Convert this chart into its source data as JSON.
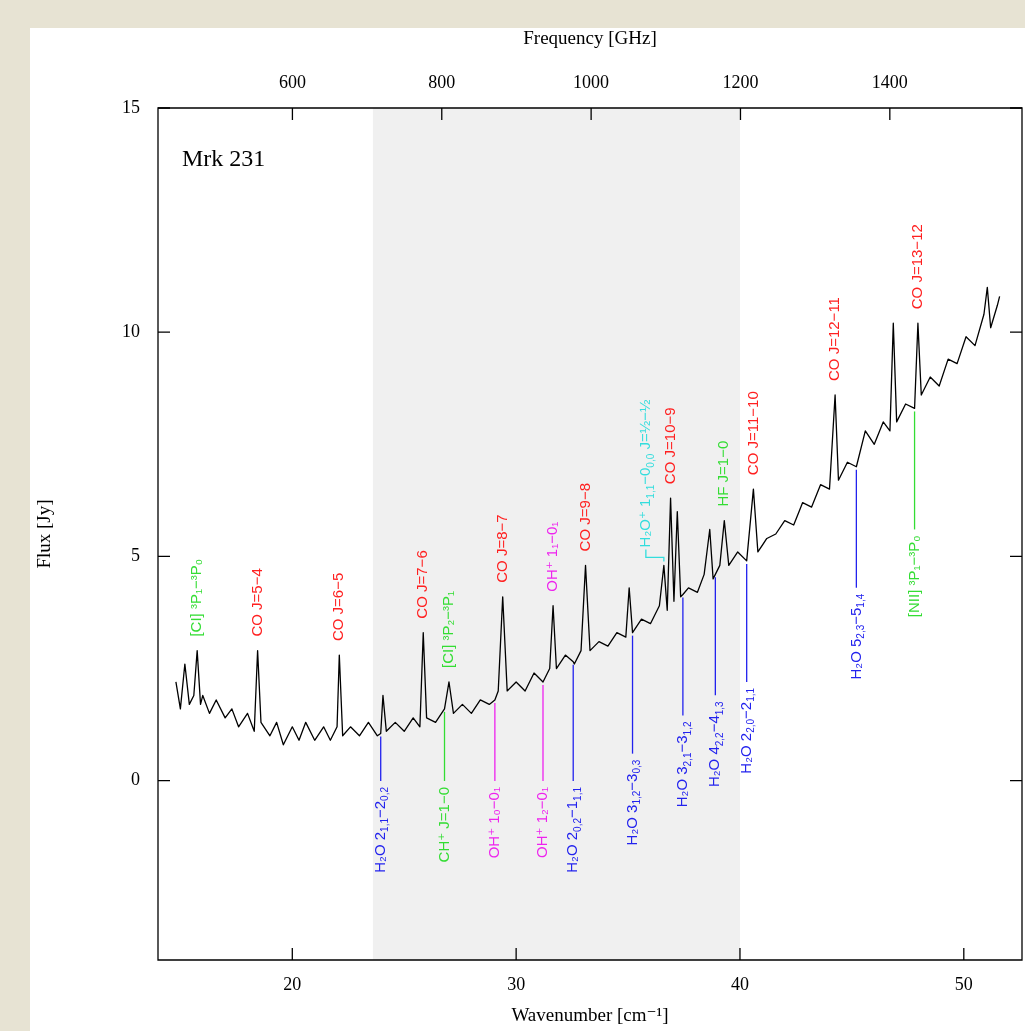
{
  "chart_data": {
    "type": "line",
    "xlabel": "Wavenumber [cm⁻¹]",
    "x2label": "Frequency [GHz]",
    "ylabel": "Flux [Jy]",
    "xlim": [
      14,
      52.6
    ],
    "xticks": [
      20,
      30,
      40,
      50
    ],
    "x2lim": [
      420,
      1577
    ],
    "x2ticks": [
      600,
      800,
      1000,
      1200,
      1400
    ],
    "ylim": [
      -4,
      15
    ],
    "yticks": [
      0,
      5,
      10,
      15
    ],
    "x": [
      14.8,
      15.0,
      15.2,
      15.4,
      15.6,
      15.75,
      15.9,
      16.0,
      16.3,
      16.6,
      17.0,
      17.3,
      17.6,
      18.0,
      18.3,
      18.45,
      18.6,
      19.0,
      19.3,
      19.6,
      20.0,
      20.3,
      20.6,
      21.0,
      21.4,
      21.7,
      22.0,
      22.1,
      22.25,
      22.6,
      23.0,
      23.4,
      23.8,
      23.95,
      24.05,
      24.2,
      24.6,
      25.0,
      25.4,
      25.7,
      25.85,
      26.0,
      26.4,
      26.8,
      27.0,
      27.2,
      27.6,
      28.0,
      28.4,
      28.8,
      29.05,
      29.2,
      29.4,
      29.6,
      30.0,
      30.4,
      30.8,
      31.2,
      31.5,
      31.65,
      31.8,
      32.2,
      32.55,
      32.6,
      32.9,
      33.1,
      33.3,
      33.7,
      34.1,
      34.5,
      34.9,
      35.05,
      35.2,
      35.6,
      36.0,
      36.4,
      36.6,
      36.75,
      36.9,
      37.05,
      37.2,
      37.35,
      37.45,
      37.7,
      38.1,
      38.4,
      38.65,
      38.8,
      38.9,
      39.1,
      39.3,
      39.5,
      39.9,
      40.3,
      40.6,
      40.8,
      41.2,
      41.6,
      42.0,
      42.4,
      42.8,
      43.2,
      43.6,
      44.0,
      44.25,
      44.4,
      44.8,
      45.2,
      45.6,
      46.0,
      46.4,
      46.7,
      46.85,
      47.0,
      47.4,
      47.8,
      47.95,
      48.1,
      48.5,
      48.9,
      49.3,
      49.7,
      50.1,
      50.5,
      50.9,
      51.05,
      51.2,
      51.5,
      51.6
    ],
    "series": [
      {
        "color": "#000000",
        "values": [
          2.2,
          1.6,
          2.6,
          1.7,
          1.9,
          2.9,
          1.7,
          1.9,
          1.5,
          1.8,
          1.4,
          1.6,
          1.2,
          1.5,
          1.1,
          2.9,
          1.3,
          1.0,
          1.3,
          0.8,
          1.2,
          0.9,
          1.3,
          0.9,
          1.2,
          0.9,
          1.2,
          2.8,
          1.0,
          1.2,
          1.0,
          1.3,
          1.0,
          1.05,
          1.9,
          1.1,
          1.3,
          1.1,
          1.4,
          1.2,
          3.3,
          1.4,
          1.3,
          1.6,
          2.2,
          1.5,
          1.7,
          1.5,
          1.8,
          1.7,
          1.8,
          2.0,
          4.1,
          2.0,
          2.2,
          2.0,
          2.4,
          2.2,
          2.5,
          3.9,
          2.5,
          2.8,
          2.65,
          2.6,
          2.9,
          4.8,
          2.9,
          3.1,
          3.0,
          3.3,
          3.2,
          4.3,
          3.3,
          3.6,
          3.5,
          3.9,
          4.8,
          3.8,
          6.3,
          4.0,
          6.0,
          4.1,
          4.15,
          4.3,
          4.2,
          4.6,
          5.6,
          4.5,
          4.6,
          4.8,
          5.8,
          4.8,
          5.1,
          4.9,
          6.5,
          5.1,
          5.4,
          5.5,
          5.8,
          5.7,
          6.2,
          6.1,
          6.6,
          6.5,
          8.6,
          6.7,
          7.1,
          7.0,
          7.8,
          7.5,
          8.0,
          7.8,
          10.2,
          8.0,
          8.4,
          8.3,
          10.2,
          8.6,
          9.0,
          8.8,
          9.4,
          9.3,
          9.9,
          9.7,
          10.4,
          11.0,
          10.1,
          10.6,
          10.8
        ]
      }
    ],
    "bands": [
      {
        "axis": "x",
        "from": 23.6,
        "to": 40.0,
        "color": "#f0f0f0"
      }
    ],
    "annotations": [
      "Mrk 231",
      {
        "text": "[CI] ³P₁−³P₀",
        "x": 15.75,
        "y": 2.9
      },
      {
        "text": "CO J=5−4",
        "x": 18.45,
        "y": 2.9
      },
      {
        "text": "CO J=6−5",
        "x": 22.1,
        "y": 2.8
      },
      {
        "text": "CO J=7−6",
        "x": 25.85,
        "y": 3.3
      },
      {
        "text": "[CI] ³P₂−³P₁",
        "x": 27.0,
        "y": 2.2
      },
      {
        "text": "CO J=8−7",
        "x": 29.4,
        "y": 4.1
      },
      {
        "text": "OH⁺ 1₁−0₁",
        "x": 31.65,
        "y": 3.9
      },
      {
        "text": "CO J=9−8",
        "x": 33.1,
        "y": 4.8
      },
      {
        "text": "H₂O⁺ 1$_{1,1}$−0$_{0,0}$ J=½−½",
        "x": 36.6,
        "y": 4.8
      },
      {
        "text": "CO J=10−9",
        "x": 36.9,
        "y": 6.3
      },
      {
        "text": "HF J=1−0",
        "x": 39.3,
        "y": 5.8
      },
      {
        "text": "CO J=11−10",
        "x": 40.6,
        "y": 6.5
      },
      {
        "text": "CO J=12−11",
        "x": 44.25,
        "y": 8.6
      },
      {
        "text": "CO J=13−12",
        "x": 47.95,
        "y": 10.2
      },
      {
        "text": "H₂O 5$_{2,3}$−5$_{1,4}$",
        "x": 45.2,
        "y": 7.0
      },
      {
        "text": "[NII] ³P₁−³P₀",
        "x": 47.8,
        "y": 8.3
      },
      {
        "text": "H₂O 2$_{1,1}$−2$_{0,2}$",
        "x": 23.95,
        "y": 1.05
      },
      {
        "text": "CH⁺ J=1−0",
        "x": 26.8,
        "y": 1.6
      },
      {
        "text": "OH⁺ 1₀−0₁",
        "x": 29.05,
        "y": 1.8
      },
      {
        "text": "OH⁺ 1₂−0₁",
        "x": 31.2,
        "y": 2.2
      },
      {
        "text": "H₂O 2$_{0,2}$−1$_{1,1}$",
        "x": 32.55,
        "y": 2.65
      },
      {
        "text": "H₂O 3$_{1,2}$−3$_{0,3}$",
        "x": 35.2,
        "y": 3.3
      },
      {
        "text": "H₂O 3$_{2,1}$−3$_{1,2}$",
        "x": 37.45,
        "y": 4.15
      },
      {
        "text": "H₂O 4$_{2,2}$−4$_{1,3}$",
        "x": 38.9,
        "y": 4.6
      },
      {
        "text": "H₂O 2$_{2,0}$−2$_{1,1}$",
        "x": 40.3,
        "y": 4.9
      }
    ],
    "grid": false,
    "legend": false,
    "marker": "none",
    "line_style": "solid"
  }
}
